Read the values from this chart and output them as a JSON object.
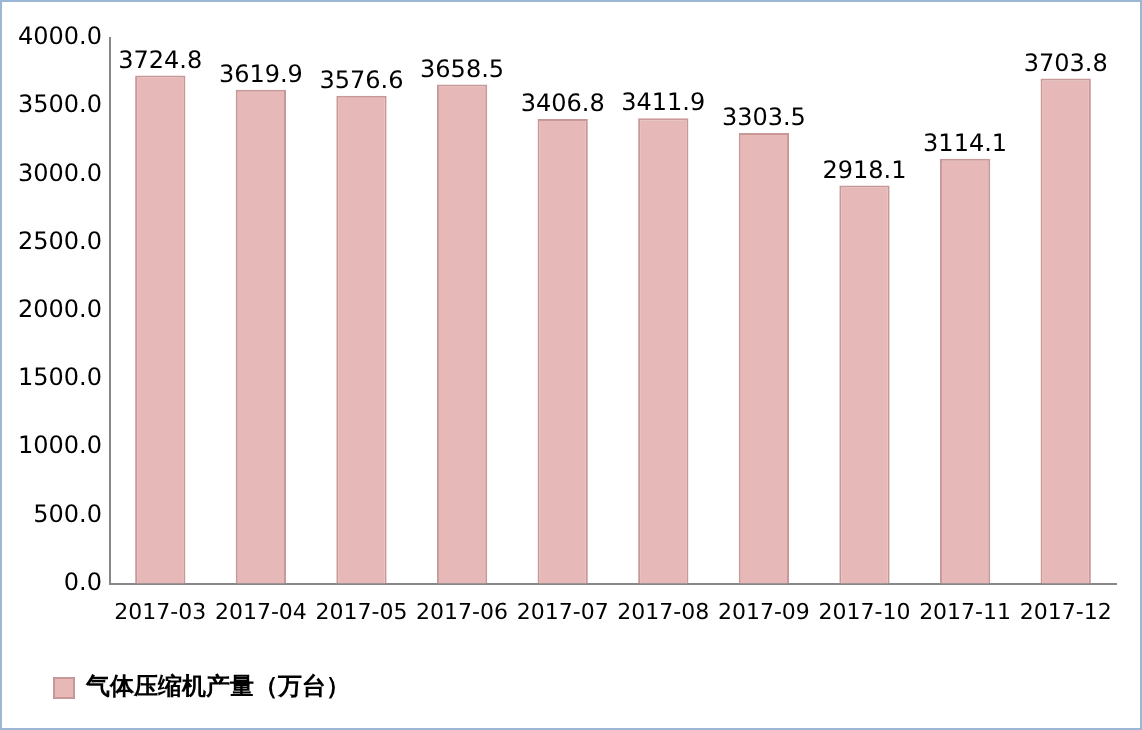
{
  "chart_data": {
    "type": "bar",
    "categories": [
      "2017-03",
      "2017-04",
      "2017-05",
      "2017-06",
      "2017-07",
      "2017-08",
      "2017-09",
      "2017-10",
      "2017-11",
      "2017-12"
    ],
    "series": [
      {
        "name": "气体压缩机产量（万台）",
        "color": "#e6b9b8",
        "values": [
          3724.8,
          3619.9,
          3576.6,
          3658.5,
          3406.8,
          3411.9,
          3303.5,
          2918.1,
          3114.1,
          3703.8
        ]
      }
    ],
    "ylim": [
      0,
      4000
    ],
    "yticks": [
      {
        "value": 0,
        "label": "0.0"
      },
      {
        "value": 500,
        "label": "500.0"
      },
      {
        "value": 1000,
        "label": "1000.0"
      },
      {
        "value": 1500,
        "label": "1500.0"
      },
      {
        "value": 2000,
        "label": "2000.0"
      },
      {
        "value": 2500,
        "label": "2500.0"
      },
      {
        "value": 3000,
        "label": "3000.0"
      },
      {
        "value": 3500,
        "label": "3500.0"
      },
      {
        "value": 4000,
        "label": "4000.0"
      }
    ],
    "data_labels": true,
    "legend": "bottom left",
    "grid": false
  }
}
